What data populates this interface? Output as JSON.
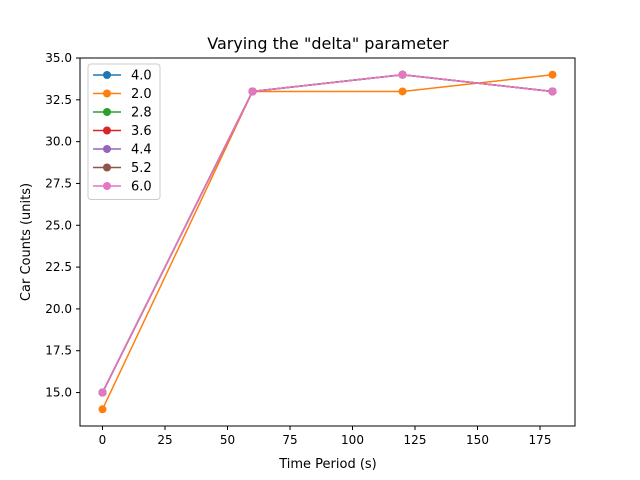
{
  "chart_data": {
    "type": "line",
    "title": "Varying the \"delta\" parameter",
    "xlabel": "Time Period (s)",
    "ylabel": "Car Counts (units)",
    "xlim": [
      -9,
      189
    ],
    "ylim": [
      13.0,
      35.0
    ],
    "xticks": [
      0,
      25,
      50,
      75,
      100,
      125,
      150,
      175
    ],
    "yticks": [
      15.0,
      17.5,
      20.0,
      22.5,
      25.0,
      27.5,
      30.0,
      32.5,
      35.0
    ],
    "ytick_labels": [
      "15.0",
      "17.5",
      "20.0",
      "22.5",
      "25.0",
      "27.5",
      "30.0",
      "32.5",
      "35.0"
    ],
    "grid": false,
    "legend_position": "upper-left",
    "x": [
      0,
      60,
      120,
      180
    ],
    "series": [
      {
        "name": "4.0",
        "color": "#1f77b4",
        "values": [
          15,
          33,
          34,
          33
        ]
      },
      {
        "name": "2.0",
        "color": "#ff7f0e",
        "values": [
          14,
          33,
          33,
          34
        ]
      },
      {
        "name": "2.8",
        "color": "#2ca02c",
        "values": [
          15,
          33,
          34,
          33
        ]
      },
      {
        "name": "3.6",
        "color": "#d62728",
        "values": [
          15,
          33,
          34,
          33
        ]
      },
      {
        "name": "4.4",
        "color": "#9467bd",
        "values": [
          15,
          33,
          34,
          33
        ]
      },
      {
        "name": "5.2",
        "color": "#8c564b",
        "values": [
          15,
          33,
          34,
          33
        ]
      },
      {
        "name": "6.0",
        "color": "#e377c2",
        "values": [
          15,
          33,
          34,
          33
        ]
      }
    ]
  }
}
